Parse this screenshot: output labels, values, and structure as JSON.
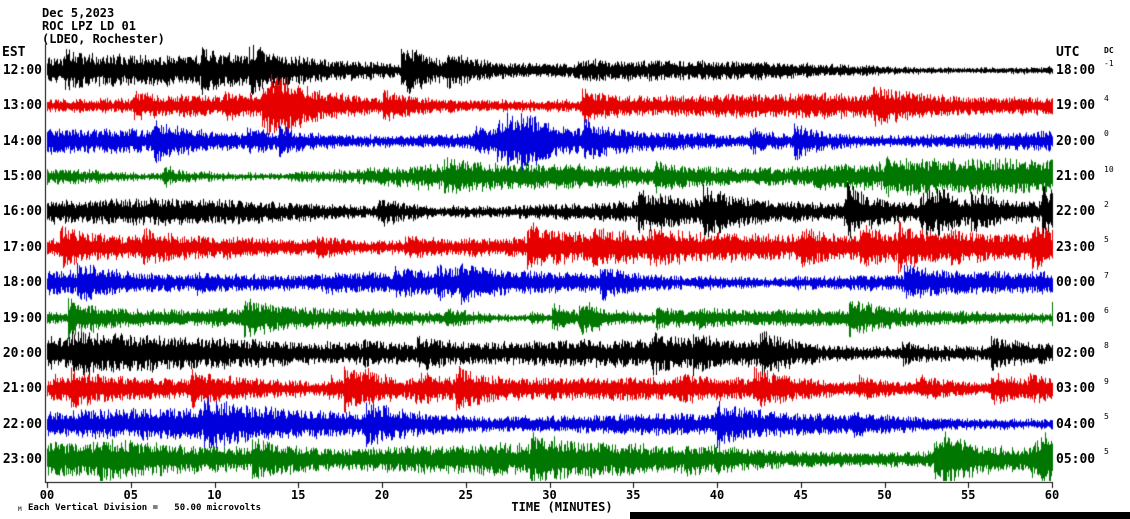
{
  "header": {
    "date": "Dec 5,2023",
    "station": "ROC LPZ LD 01",
    "network": "(LDEO, Rochester)"
  },
  "axes": {
    "left_label": "EST",
    "right_label": "UTC",
    "dc_label": "DC",
    "x_axis_label": "TIME (MINUTES)",
    "x_ticks": [
      "00",
      "05",
      "10",
      "15",
      "20",
      "25",
      "30",
      "35",
      "40",
      "45",
      "50",
      "55",
      "60"
    ]
  },
  "footer": {
    "marker": "M",
    "scale_note": "Each Vertical Division =   50.00 microvolts"
  },
  "chart_data": {
    "type": "line",
    "title": "ROC LPZ LD 01 helicorder record, Dec 5, 2023 (LDEO, Rochester)",
    "xlabel": "TIME (MINUTES)",
    "x_range": [
      0,
      60
    ],
    "x_tick_step_minutes": 5,
    "vertical_division_microvolts": 50.0,
    "amplitude_units": "microvolts",
    "description": "12 stacked one-hour seismogram traces of continuous unresolvable seismic noise with intermittent bursts; trace colors cycle black, red, blue, green per hour.",
    "rows": [
      {
        "est": "12:00",
        "utc": "18:00",
        "dc": "-1",
        "color": "#000000",
        "relative_amplitude": 1.0
      },
      {
        "est": "13:00",
        "utc": "19:00",
        "dc": "4",
        "color": "#e60000",
        "relative_amplitude": 0.95
      },
      {
        "est": "14:00",
        "utc": "20:00",
        "dc": "0",
        "color": "#0000dd",
        "relative_amplitude": 0.9
      },
      {
        "est": "15:00",
        "utc": "21:00",
        "dc": "10",
        "color": "#007700",
        "relative_amplitude": 1.25
      },
      {
        "est": "16:00",
        "utc": "22:00",
        "dc": "2",
        "color": "#000000",
        "relative_amplitude": 1.1
      },
      {
        "est": "17:00",
        "utc": "23:00",
        "dc": "5",
        "color": "#e60000",
        "relative_amplitude": 0.95
      },
      {
        "est": "18:00",
        "utc": "00:00",
        "dc": "7",
        "color": "#0000dd",
        "relative_amplitude": 0.9
      },
      {
        "est": "19:00",
        "utc": "01:00",
        "dc": "6",
        "color": "#007700",
        "relative_amplitude": 1.05
      },
      {
        "est": "20:00",
        "utc": "02:00",
        "dc": "8",
        "color": "#000000",
        "relative_amplitude": 1.15
      },
      {
        "est": "21:00",
        "utc": "03:00",
        "dc": "9",
        "color": "#e60000",
        "relative_amplitude": 0.9
      },
      {
        "est": "22:00",
        "utc": "04:00",
        "dc": "5",
        "color": "#0000dd",
        "relative_amplitude": 0.95
      },
      {
        "est": "23:00",
        "utc": "05:00",
        "dc": "5",
        "color": "#007700",
        "relative_amplitude": 1.1
      }
    ]
  }
}
